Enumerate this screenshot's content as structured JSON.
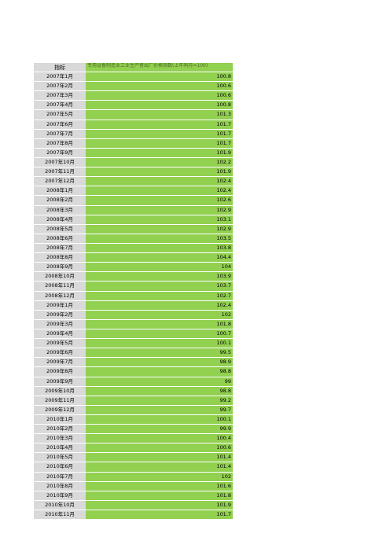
{
  "table": {
    "header_label": "指标",
    "header_value": "专用设备制造业工业生产者出厂价格指数(上年同月=100)",
    "rows": [
      {
        "date": "2007年1月",
        "value": "100.8"
      },
      {
        "date": "2007年2月",
        "value": "100.6"
      },
      {
        "date": "2007年3月",
        "value": "100.6"
      },
      {
        "date": "2007年4月",
        "value": "100.8"
      },
      {
        "date": "2007年5月",
        "value": "101.3"
      },
      {
        "date": "2007年6月",
        "value": "101.7"
      },
      {
        "date": "2007年7月",
        "value": "101.7"
      },
      {
        "date": "2007年8月",
        "value": "101.7"
      },
      {
        "date": "2007年9月",
        "value": "101.9"
      },
      {
        "date": "2007年10月",
        "value": "102.2"
      },
      {
        "date": "2007年11月",
        "value": "101.9"
      },
      {
        "date": "2007年12月",
        "value": "102.4"
      },
      {
        "date": "2008年1月",
        "value": "102.4"
      },
      {
        "date": "2008年2月",
        "value": "102.6"
      },
      {
        "date": "2008年3月",
        "value": "102.9"
      },
      {
        "date": "2008年4月",
        "value": "103.1"
      },
      {
        "date": "2008年5月",
        "value": "102.9"
      },
      {
        "date": "2008年6月",
        "value": "103.5"
      },
      {
        "date": "2008年7月",
        "value": "103.8"
      },
      {
        "date": "2008年8月",
        "value": "104.4"
      },
      {
        "date": "2008年9月",
        "value": "104"
      },
      {
        "date": "2008年10月",
        "value": "103.9"
      },
      {
        "date": "2008年11月",
        "value": "103.7"
      },
      {
        "date": "2008年12月",
        "value": "102.7"
      },
      {
        "date": "2009年1月",
        "value": "102.4"
      },
      {
        "date": "2009年2月",
        "value": "102"
      },
      {
        "date": "2009年3月",
        "value": "101.8"
      },
      {
        "date": "2009年4月",
        "value": "100.7"
      },
      {
        "date": "2009年5月",
        "value": "100.1"
      },
      {
        "date": "2009年6月",
        "value": "99.5"
      },
      {
        "date": "2009年7月",
        "value": "98.9"
      },
      {
        "date": "2009年8月",
        "value": "98.8"
      },
      {
        "date": "2009年9月",
        "value": "99"
      },
      {
        "date": "2009年10月",
        "value": "98.8"
      },
      {
        "date": "2009年11月",
        "value": "99.2"
      },
      {
        "date": "2009年12月",
        "value": "99.7"
      },
      {
        "date": "2010年1月",
        "value": "100.1"
      },
      {
        "date": "2010年2月",
        "value": "99.9"
      },
      {
        "date": "2010年3月",
        "value": "100.4"
      },
      {
        "date": "2010年4月",
        "value": "100.6"
      },
      {
        "date": "2010年5月",
        "value": "101.4"
      },
      {
        "date": "2010年6月",
        "value": "101.4"
      },
      {
        "date": "2010年7月",
        "value": "102"
      },
      {
        "date": "2010年8月",
        "value": "101.6"
      },
      {
        "date": "2010年9月",
        "value": "101.8"
      },
      {
        "date": "2010年10月",
        "value": "101.9"
      },
      {
        "date": "2010年11月",
        "value": "101.7"
      }
    ]
  },
  "colors": {
    "label_bg": "#d9d9d9",
    "value_bg": "#92d050"
  }
}
